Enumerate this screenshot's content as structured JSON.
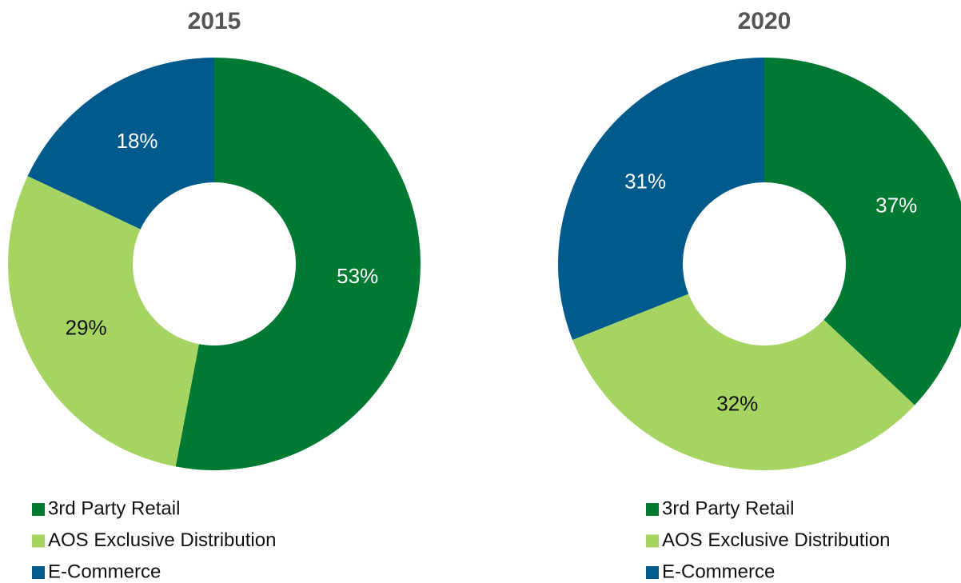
{
  "chart_data": [
    {
      "type": "donut",
      "title": "2015",
      "categories": [
        "3rd Party Retail",
        "AOS Exclusive Distribution",
        "E-Commerce"
      ],
      "values": [
        53,
        29,
        18
      ],
      "value_labels": [
        "53%",
        "29%",
        "18%"
      ],
      "colors": [
        "#007a33",
        "#a5d462",
        "#005a8c"
      ]
    },
    {
      "type": "donut",
      "title": "2020",
      "categories": [
        "3rd Party Retail",
        "AOS Exclusive Distribution",
        "E-Commerce"
      ],
      "values": [
        37,
        32,
        31
      ],
      "value_labels": [
        "37%",
        "32%",
        "31%"
      ],
      "colors": [
        "#007a33",
        "#a5d462",
        "#005a8c"
      ]
    }
  ]
}
